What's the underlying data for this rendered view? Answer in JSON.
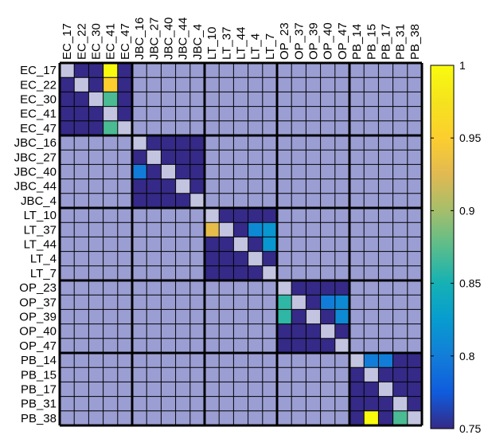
{
  "chart_data": {
    "type": "heatmap",
    "row_labels": [
      "EC_17",
      "EC_22",
      "EC_30",
      "EC_41",
      "EC_47",
      "JBC_16",
      "JBC_27",
      "JBC_40",
      "JBC_44",
      "JBC_4",
      "LT_10",
      "LT_37",
      "LT_44",
      "LT_4",
      "LT_7",
      "OP_23",
      "OP_37",
      "OP_39",
      "OP_40",
      "OP_47",
      "PB_14",
      "PB_15",
      "PB_17",
      "PB_31",
      "PB_38"
    ],
    "col_labels": [
      "EC_17",
      "EC_22",
      "EC_30",
      "EC_41",
      "EC_47",
      "JBC_16",
      "JBC_27",
      "JBC_40",
      "JBC_44",
      "JBC_4",
      "LT_10",
      "LT_37",
      "LT_44",
      "LT_4",
      "LT_7",
      "OP_23",
      "OP_37",
      "OP_39",
      "OP_40",
      "OP_47",
      "PB_14",
      "PB_15",
      "PB_17",
      "PB_31",
      "PB_38"
    ],
    "groups": [
      {
        "label": "EC",
        "start": 0,
        "end": 5
      },
      {
        "label": "JBC",
        "start": 5,
        "end": 10
      },
      {
        "label": "LT",
        "start": 10,
        "end": 15
      },
      {
        "label": "OP",
        "start": 15,
        "end": 20
      },
      {
        "label": "PB",
        "start": 20,
        "end": 25
      }
    ],
    "block_values": [
      [
        null,
        0.75,
        0.75,
        1.0,
        0.75
      ],
      [
        0.75,
        null,
        0.75,
        0.95,
        0.75
      ],
      [
        0.75,
        0.75,
        null,
        0.87,
        0.75
      ],
      [
        0.75,
        0.75,
        0.75,
        null,
        0.75
      ],
      [
        0.75,
        0.75,
        0.75,
        0.87,
        null
      ],
      [
        null,
        0.75,
        0.75,
        0.75,
        0.75
      ],
      [
        0.75,
        null,
        0.75,
        0.75,
        0.75
      ],
      [
        0.8,
        0.75,
        null,
        0.75,
        0.75
      ],
      [
        0.75,
        0.75,
        0.75,
        null,
        0.75
      ],
      [
        0.75,
        0.75,
        0.75,
        0.75,
        null
      ],
      [
        null,
        0.75,
        0.75,
        0.75,
        0.75
      ],
      [
        0.93,
        null,
        0.75,
        0.81,
        0.82
      ],
      [
        0.75,
        0.75,
        null,
        0.75,
        0.82
      ],
      [
        0.75,
        0.75,
        0.75,
        null,
        0.75
      ],
      [
        0.75,
        0.75,
        0.75,
        0.75,
        null
      ],
      [
        null,
        0.75,
        0.75,
        0.75,
        0.75
      ],
      [
        0.86,
        null,
        0.75,
        0.8,
        0.81
      ],
      [
        0.86,
        0.75,
        null,
        0.75,
        0.81
      ],
      [
        0.75,
        0.75,
        0.75,
        null,
        0.75
      ],
      [
        0.75,
        0.75,
        0.75,
        0.75,
        null
      ],
      [
        null,
        0.8,
        0.8,
        0.75,
        0.75
      ],
      [
        0.75,
        null,
        0.75,
        0.75,
        0.75
      ],
      [
        0.75,
        0.75,
        null,
        0.75,
        0.75
      ],
      [
        0.75,
        0.75,
        0.75,
        null,
        0.75
      ],
      [
        0.75,
        1.0,
        0.75,
        0.87,
        null
      ]
    ],
    "off_block_value": "out_of_range",
    "colorbar": {
      "min": 0.75,
      "max": 1.0,
      "ticks": [
        0.75,
        0.8,
        0.85,
        0.9,
        0.95,
        1
      ],
      "tick_labels": [
        "0.75",
        "0.8",
        "0.85",
        "0.9",
        "0.95",
        "1"
      ],
      "colormap": "parula"
    },
    "colors": {
      "out_of_range": "#9b9ed3",
      "diagonal": "#c3c4e0",
      "grid": "#000000"
    },
    "title": "",
    "xlabel": "",
    "ylabel": ""
  }
}
